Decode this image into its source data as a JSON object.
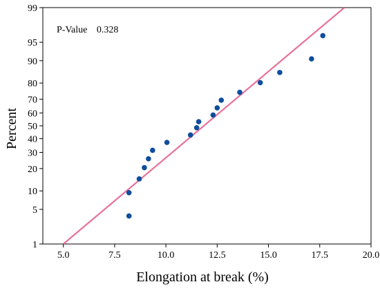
{
  "chart_data": {
    "type": "scatter",
    "subtype": "normal-probability-plot",
    "xlabel": "Elongation at break (%)",
    "ylabel": "Percent",
    "xlim": [
      4.0,
      20.0
    ],
    "ylim_percent": [
      1,
      99
    ],
    "y_scale": "normal-probability",
    "x_ticks": [
      "5.0",
      "7.5",
      "10.0",
      "12.5",
      "15.0",
      "17.5",
      "20.0"
    ],
    "x_tick_values": [
      5.0,
      7.5,
      10.0,
      12.5,
      15.0,
      17.5,
      20.0
    ],
    "y_ticks": [
      "1",
      "5",
      "10",
      "20",
      "30",
      "40",
      "50",
      "60",
      "70",
      "80",
      "90",
      "95",
      "99"
    ],
    "y_tick_values": [
      1,
      5,
      10,
      20,
      30,
      40,
      50,
      60,
      70,
      80,
      90,
      95,
      99
    ],
    "annotation": {
      "label": "P-Value",
      "value": "0.328"
    },
    "fit_line": {
      "color": "#e8709a",
      "points": [
        {
          "x": 5.0,
          "y": 1
        },
        {
          "x": 18.7,
          "y": 99
        }
      ]
    },
    "series": [
      {
        "color": "#0f4d9e",
        "points": [
          {
            "x": 8.2,
            "y": 3.8
          },
          {
            "x": 8.2,
            "y": 9.4
          },
          {
            "x": 8.7,
            "y": 14.8
          },
          {
            "x": 8.95,
            "y": 20.5
          },
          {
            "x": 9.15,
            "y": 25.8
          },
          {
            "x": 9.35,
            "y": 31.5
          },
          {
            "x": 10.05,
            "y": 37.2
          },
          {
            "x": 11.2,
            "y": 42.8
          },
          {
            "x": 11.5,
            "y": 48.5
          },
          {
            "x": 11.6,
            "y": 53.2
          },
          {
            "x": 12.3,
            "y": 58.4
          },
          {
            "x": 12.5,
            "y": 63.8
          },
          {
            "x": 12.7,
            "y": 69.3
          },
          {
            "x": 13.6,
            "y": 74.5
          },
          {
            "x": 14.6,
            "y": 80.2
          },
          {
            "x": 15.55,
            "y": 85.3
          },
          {
            "x": 17.1,
            "y": 90.6
          },
          {
            "x": 17.65,
            "y": 96.2
          }
        ]
      }
    ]
  }
}
